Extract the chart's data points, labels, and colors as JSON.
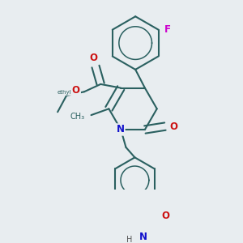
{
  "bg_color": "#e8edf0",
  "bond_color": "#2a6060",
  "bond_lw": 1.5,
  "dbl_sep": 0.06,
  "colors": {
    "O": "#cc1111",
    "N": "#1111cc",
    "F": "#cc00cc",
    "H": "#555555",
    "C": "#2a6060"
  },
  "af": 8.5,
  "sf": 7.0
}
